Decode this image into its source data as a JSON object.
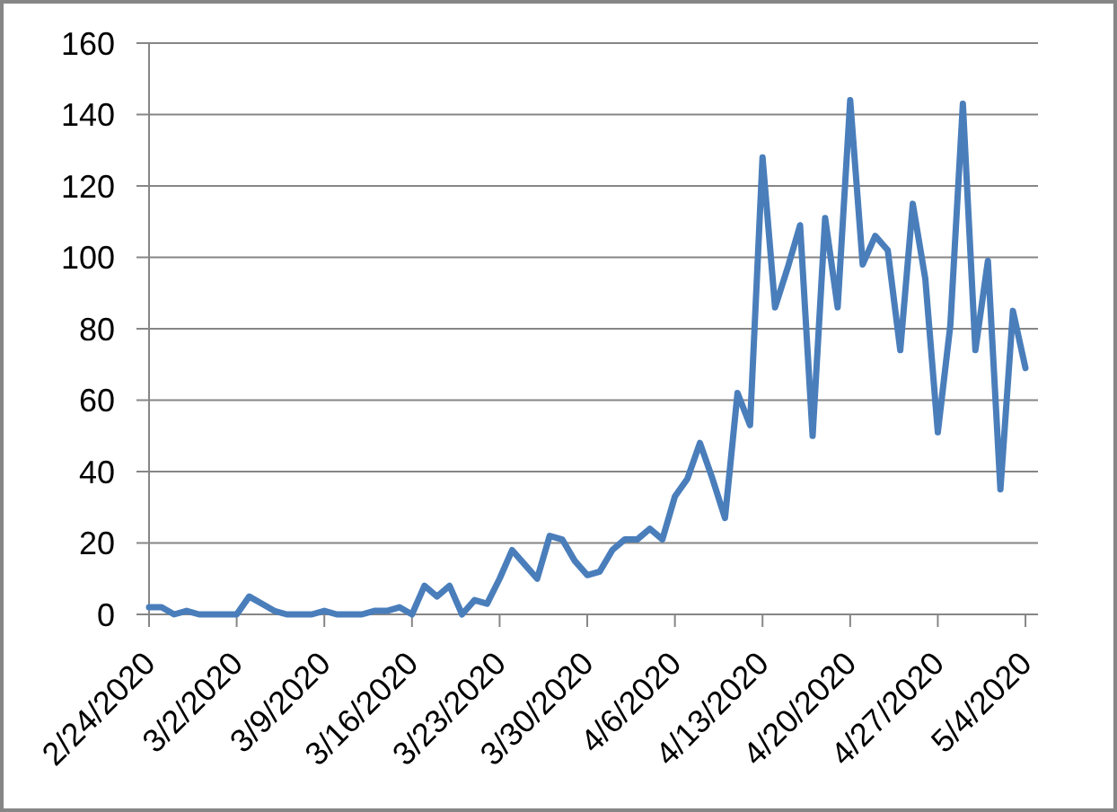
{
  "chart_data": {
    "type": "line",
    "x": [
      "2020-02-24",
      "2020-02-25",
      "2020-02-26",
      "2020-02-27",
      "2020-02-28",
      "2020-02-29",
      "2020-03-01",
      "2020-03-02",
      "2020-03-03",
      "2020-03-04",
      "2020-03-05",
      "2020-03-06",
      "2020-03-07",
      "2020-03-08",
      "2020-03-09",
      "2020-03-10",
      "2020-03-11",
      "2020-03-12",
      "2020-03-13",
      "2020-03-14",
      "2020-03-15",
      "2020-03-16",
      "2020-03-17",
      "2020-03-18",
      "2020-03-19",
      "2020-03-20",
      "2020-03-21",
      "2020-03-22",
      "2020-03-23",
      "2020-03-24",
      "2020-03-25",
      "2020-03-26",
      "2020-03-27",
      "2020-03-28",
      "2020-03-29",
      "2020-03-30",
      "2020-03-31",
      "2020-04-01",
      "2020-04-02",
      "2020-04-03",
      "2020-04-04",
      "2020-04-05",
      "2020-04-06",
      "2020-04-07",
      "2020-04-08",
      "2020-04-09",
      "2020-04-10",
      "2020-04-11",
      "2020-04-12",
      "2020-04-13",
      "2020-04-14",
      "2020-04-15",
      "2020-04-16",
      "2020-04-17",
      "2020-04-18",
      "2020-04-19",
      "2020-04-20",
      "2020-04-21",
      "2020-04-22",
      "2020-04-23",
      "2020-04-24",
      "2020-04-25",
      "2020-04-26",
      "2020-04-27",
      "2020-04-28",
      "2020-04-29",
      "2020-04-30",
      "2020-05-01",
      "2020-05-02",
      "2020-05-03",
      "2020-05-04"
    ],
    "series": [
      {
        "color": "#4a7ebb",
        "values": [
          2,
          2,
          0,
          1,
          0,
          0,
          0,
          0,
          5,
          3,
          1,
          0,
          0,
          0,
          1,
          0,
          0,
          0,
          1,
          1,
          2,
          0,
          8,
          5,
          8,
          0,
          4,
          3,
          10,
          18,
          14,
          10,
          22,
          21,
          15,
          11,
          12,
          18,
          21,
          21,
          24,
          21,
          33,
          38,
          48,
          38,
          27,
          62,
          53,
          128,
          86,
          97,
          109,
          50,
          111,
          86,
          144,
          98,
          106,
          102,
          74,
          115,
          94,
          51,
          81,
          143,
          74,
          99,
          35,
          85,
          69
        ]
      }
    ],
    "xlim": [
      "2020-02-24",
      "2020-05-05"
    ],
    "xticks": [
      {
        "value": "2020-02-24",
        "label": "2/24/2020"
      },
      {
        "value": "2020-03-02",
        "label": "3/2/2020"
      },
      {
        "value": "2020-03-09",
        "label": "3/9/2020"
      },
      {
        "value": "2020-03-16",
        "label": "3/16/2020"
      },
      {
        "value": "2020-03-23",
        "label": "3/23/2020"
      },
      {
        "value": "2020-03-30",
        "label": "3/30/2020"
      },
      {
        "value": "2020-04-06",
        "label": "4/6/2020"
      },
      {
        "value": "2020-04-13",
        "label": "4/13/2020"
      },
      {
        "value": "2020-04-20",
        "label": "4/20/2020"
      },
      {
        "value": "2020-04-27",
        "label": "4/27/2020"
      },
      {
        "value": "2020-05-04",
        "label": "5/4/2020"
      }
    ],
    "ylim": [
      0,
      160
    ],
    "yticks": [
      0,
      20,
      40,
      60,
      80,
      100,
      120,
      140,
      160
    ],
    "grid": "y",
    "marker": "none",
    "line_style": "solid"
  }
}
